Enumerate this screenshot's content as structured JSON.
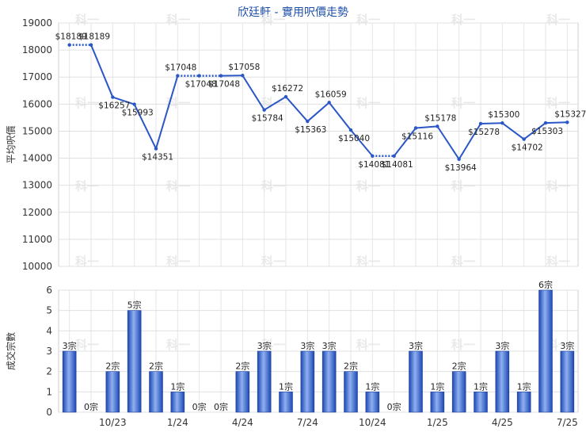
{
  "chart_data": [
    {
      "type": "line",
      "title": "欣廷軒 - 實用呎價走勢",
      "ylabel": "平均呎價",
      "ylim": [
        10000,
        19000
      ],
      "yticks": [
        10000,
        11000,
        12000,
        13000,
        14000,
        15000,
        16000,
        17000,
        18000,
        19000
      ],
      "color": "#2a56c6",
      "grid": "both",
      "points": [
        {
          "value": 18189,
          "label": "$18189",
          "carried": false
        },
        {
          "value": 18189,
          "label": "$18189",
          "carried": false
        },
        {
          "value": 16257,
          "label": "$16257",
          "carried": false
        },
        {
          "value": 15993,
          "label": "$15993",
          "carried": false
        },
        {
          "value": 14351,
          "label": "$14351",
          "carried": false
        },
        {
          "value": 17048,
          "label": "$17048",
          "carried": false
        },
        {
          "value": 17048,
          "label": "$17048",
          "carried": true
        },
        {
          "value": 17048,
          "label": "$17048",
          "carried": true
        },
        {
          "value": 17058,
          "label": "$17058",
          "carried": false
        },
        {
          "value": 15784,
          "label": "$15784",
          "carried": false
        },
        {
          "value": 16272,
          "label": "$16272",
          "carried": false
        },
        {
          "value": 15363,
          "label": "$15363",
          "carried": false
        },
        {
          "value": 16059,
          "label": "$16059",
          "carried": false
        },
        {
          "value": 15040,
          "label": "$15040",
          "carried": false
        },
        {
          "value": 14081,
          "label": "$14081",
          "carried": false
        },
        {
          "value": 14081,
          "label": "$14081",
          "carried": true
        },
        {
          "value": 15116,
          "label": "$15116",
          "carried": false
        },
        {
          "value": 15178,
          "label": "$15178",
          "carried": false
        },
        {
          "value": 13964,
          "label": "$13964",
          "carried": false
        },
        {
          "value": 15278,
          "label": "$15278",
          "carried": false
        },
        {
          "value": 15300,
          "label": "$15300",
          "carried": false
        },
        {
          "value": 14702,
          "label": "$14702",
          "carried": false
        },
        {
          "value": 15303,
          "label": "$15303",
          "carried": false
        },
        {
          "value": 15327,
          "label": "$15327",
          "carried": false
        }
      ]
    },
    {
      "type": "bar",
      "ylabel": "成交宗數",
      "ylim": [
        0,
        6
      ],
      "yticks": [
        0,
        1,
        2,
        3,
        4,
        5,
        6
      ],
      "color": "#2a56c6",
      "values": [
        3,
        0,
        2,
        5,
        2,
        1,
        0,
        0,
        2,
        3,
        1,
        3,
        3,
        2,
        1,
        0,
        3,
        1,
        2,
        1,
        3,
        1,
        6,
        3
      ],
      "labels": [
        "3宗",
        "0宗",
        "2宗",
        "5宗",
        "2宗",
        "1宗",
        "0宗",
        "0宗",
        "2宗",
        "3宗",
        "1宗",
        "3宗",
        "3宗",
        "2宗",
        "1宗",
        "0宗",
        "3宗",
        "1宗",
        "2宗",
        "1宗",
        "3宗",
        "1宗",
        "6宗",
        "3宗"
      ],
      "xticks": [
        {
          "index": 2,
          "label": "10/23"
        },
        {
          "index": 5,
          "label": "1/24"
        },
        {
          "index": 8,
          "label": "4/24"
        },
        {
          "index": 11,
          "label": "7/24"
        },
        {
          "index": 14,
          "label": "10/24"
        },
        {
          "index": 17,
          "label": "1/25"
        },
        {
          "index": 20,
          "label": "4/25"
        },
        {
          "index": 23,
          "label": "7/25"
        }
      ]
    }
  ],
  "watermark": "科一"
}
